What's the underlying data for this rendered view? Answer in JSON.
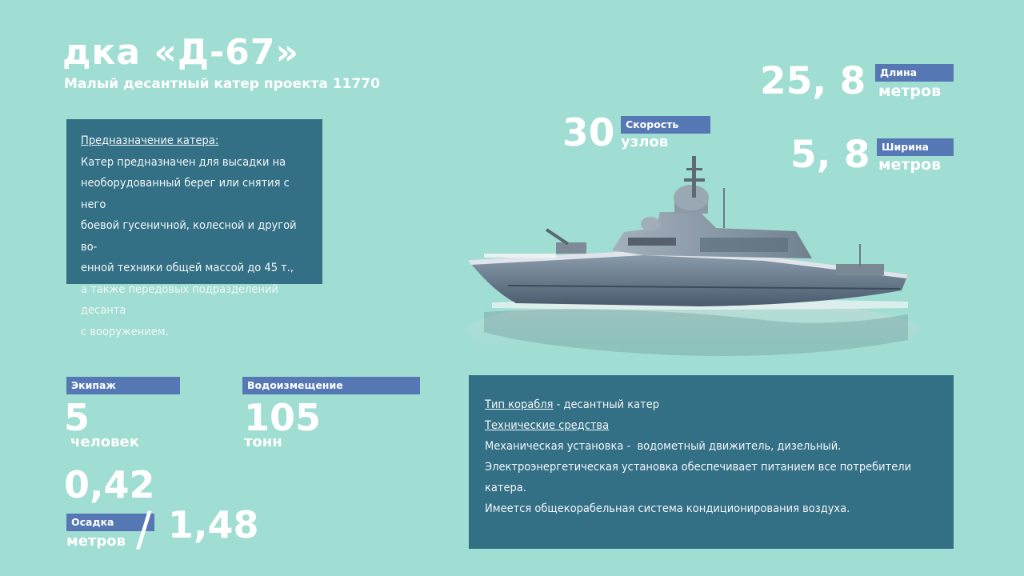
{
  "header": {
    "title": "дка «Д-67»",
    "subtitle": "Малый десантный катер проекта 11770"
  },
  "purpose": {
    "heading": "Предназначение катера:",
    "lines": [
      "Катер предназначен для высадки на",
      "необорудованный берег или снятия с него",
      "боевой гусеничной, колесной и другой во-",
      "енной техники общей массой до 45 т.,",
      "а также передовых подразделений десанта",
      "с вооружением."
    ]
  },
  "specs": {
    "speed": {
      "value": "30",
      "label": "Скорость",
      "unit": "узлов"
    },
    "length": {
      "value": "25, 8",
      "label": "Длина",
      "unit": "метров"
    },
    "width": {
      "value": "5, 8",
      "label": "Ширина",
      "unit": "метров"
    },
    "crew": {
      "label": "Экипаж",
      "value": "5",
      "unit": "человек"
    },
    "displacement": {
      "label": "Водоизмещение",
      "value": "105",
      "unit": "тонн"
    },
    "draft": {
      "value_min": "0,42",
      "value_max": "1,48",
      "slash": "/",
      "label": "Осадка",
      "unit": "метров"
    }
  },
  "tech": {
    "type_label": "Тип корабля",
    "type_sep": " - ",
    "type_value": "десантный катер",
    "means_heading": "Технические средства",
    "lines": [
      "Механическая установка -  водометный движитель, дизельный.",
      "Электроэнергетическая установка обеспечивает питанием все потребители катера.",
      "Имеется общекорабельная система кондиционирования воздуха."
    ]
  },
  "colors": {
    "background": "#a0ddd2",
    "panel": "#336f85",
    "label": "#5577b3",
    "text": "#ffffff"
  },
  "icons": {
    "illustration": "landing-craft-ship-illustration"
  }
}
